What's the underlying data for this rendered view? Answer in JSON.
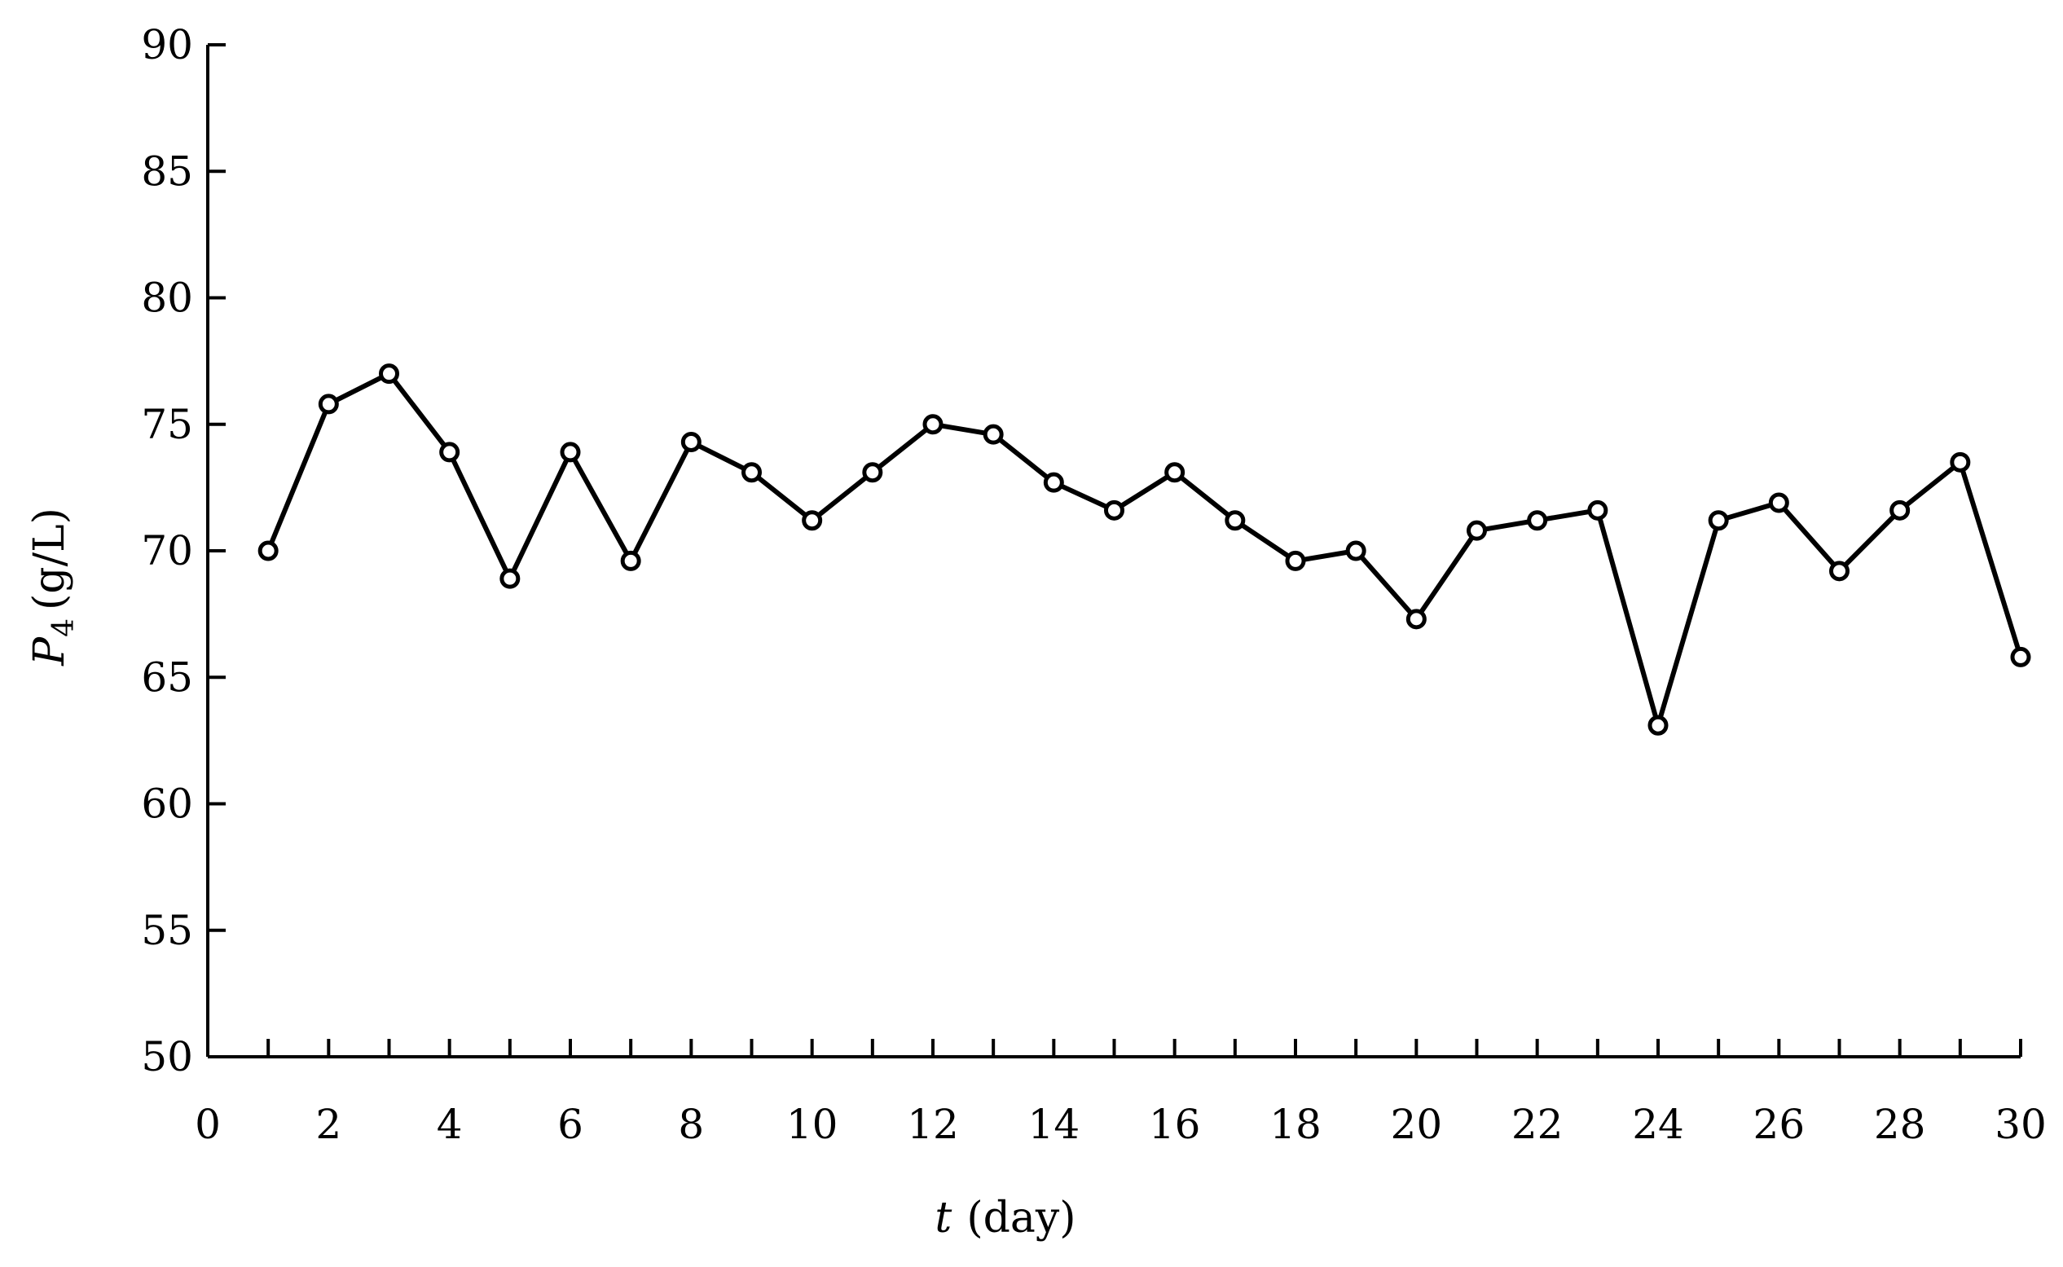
{
  "chart_data": {
    "type": "line",
    "title": "",
    "xlabel": {
      "variable": "t",
      "unit": "(day)"
    },
    "ylabel": {
      "variable": "P",
      "subscript": "4",
      "unit": "(g/L)"
    },
    "xlim": [
      0,
      30
    ],
    "ylim": [
      50,
      90
    ],
    "x_ticks": [
      0,
      2,
      4,
      6,
      8,
      10,
      12,
      14,
      16,
      18,
      20,
      22,
      24,
      26,
      28,
      30
    ],
    "y_ticks": [
      50,
      55,
      60,
      65,
      70,
      75,
      80,
      85,
      90
    ],
    "grid": false,
    "legend": "none",
    "colors": {
      "line": "#000000",
      "marker_fill": "#ffffff"
    },
    "series": [
      {
        "marker": "open-circle",
        "x": [
          1,
          2,
          3,
          4,
          5,
          6,
          7,
          8,
          9,
          10,
          11,
          12,
          13,
          14,
          15,
          16,
          17,
          18,
          19,
          20,
          21,
          22,
          23,
          24,
          25,
          26,
          27,
          28,
          29,
          30
        ],
        "y": [
          70.0,
          75.8,
          77.0,
          73.9,
          68.9,
          73.9,
          69.6,
          74.3,
          73.1,
          71.2,
          73.1,
          75.0,
          74.6,
          72.7,
          71.6,
          73.1,
          71.2,
          69.6,
          70.0,
          67.3,
          70.8,
          71.2,
          71.6,
          63.1,
          71.2,
          71.9,
          69.2,
          71.6,
          73.5,
          65.8
        ]
      }
    ]
  }
}
